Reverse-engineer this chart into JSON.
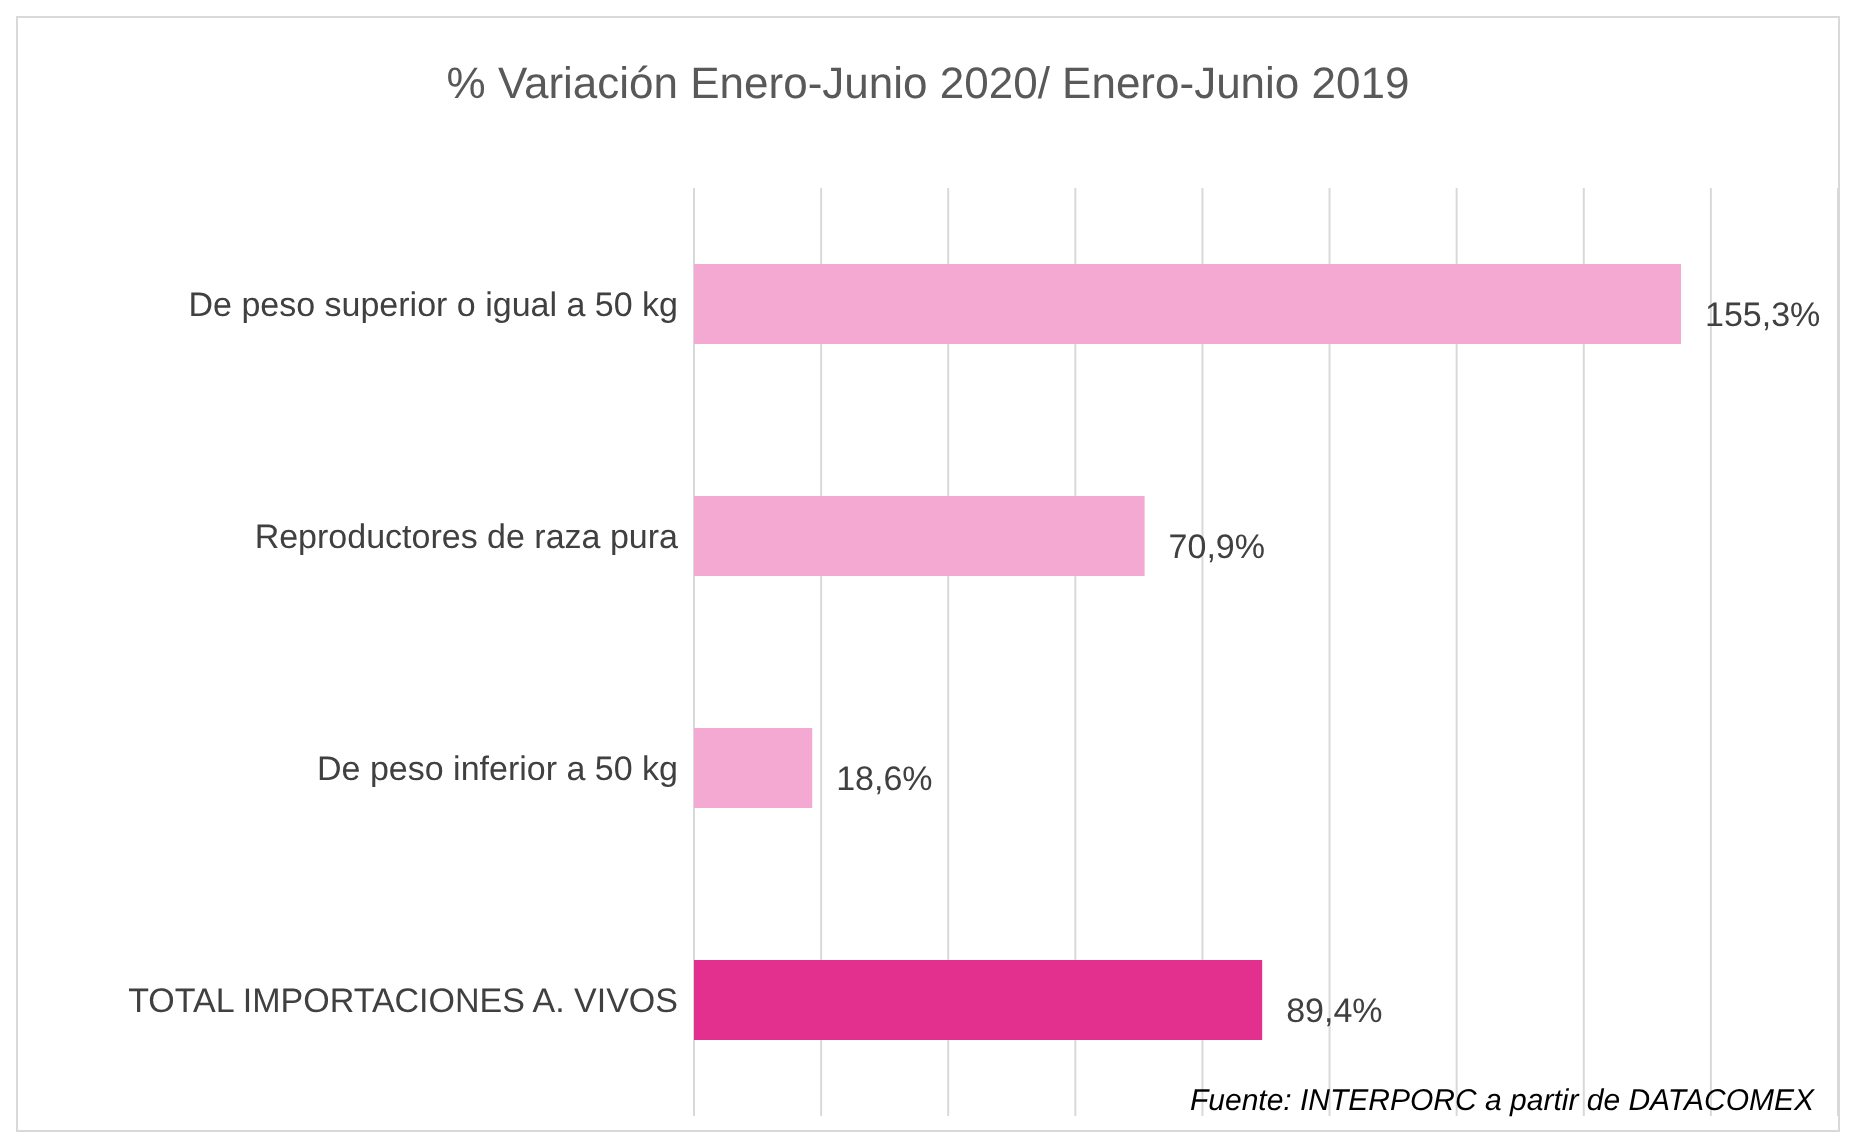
{
  "chart_data": {
    "type": "bar",
    "orientation": "horizontal",
    "title": "% Variación Enero-Junio 2020/ Enero-Junio 2019",
    "categories": [
      "De peso superior o igual a 50 kg",
      "Reproductores de raza pura",
      "De peso inferior a 50 kg",
      "TOTAL IMPORTACIONES A. VIVOS"
    ],
    "values": [
      155.3,
      70.9,
      18.6,
      89.4
    ],
    "colors": [
      "#f4a9d3",
      "#f4a9d3",
      "#f4a9d3",
      "#e3308f"
    ],
    "value_labels": [
      "155,3%",
      "70,9%",
      "18,6%",
      "89,4%"
    ],
    "xlim": [
      0,
      180
    ],
    "grid": "x",
    "tick_labels": "y",
    "legend": false,
    "annotations": [
      "Fuente: INTERPORC  a partir de DATACOMEX"
    ]
  }
}
